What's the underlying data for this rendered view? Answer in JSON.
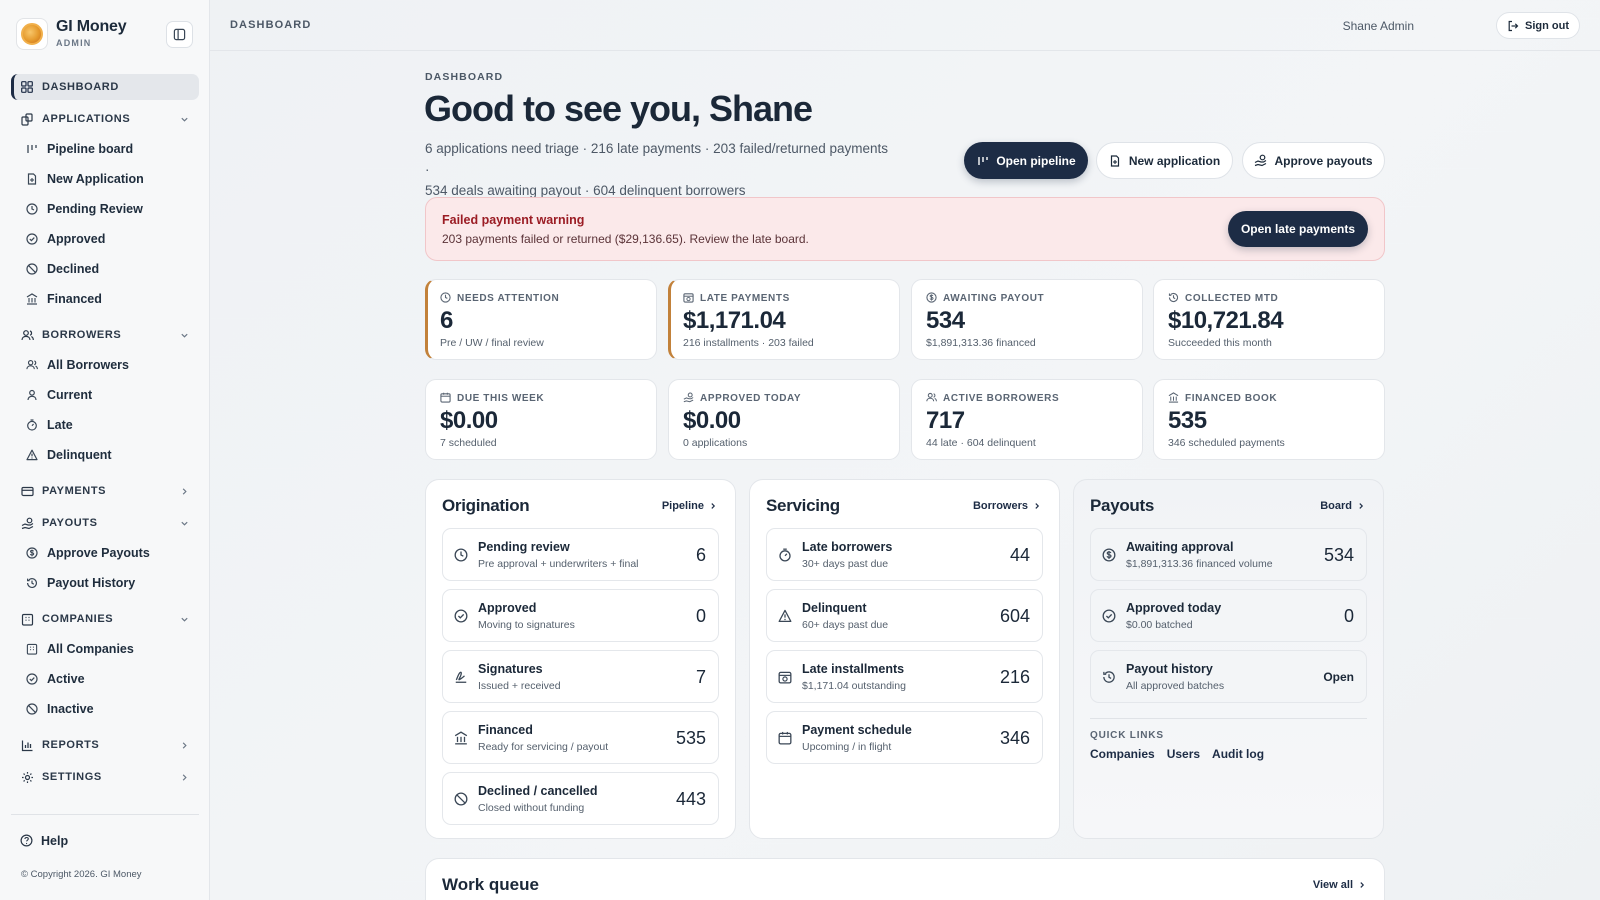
{
  "brand": {
    "name": "GI Money",
    "role": "ADMIN"
  },
  "nav": {
    "dashboard": "DASHBOARD",
    "applications": "APPLICATIONS",
    "app_items": [
      "Pipeline board",
      "New Application",
      "Pending Review",
      "Approved",
      "Declined",
      "Financed"
    ],
    "borrowers": "BORROWERS",
    "borrower_items": [
      "All Borrowers",
      "Current",
      "Late",
      "Delinquent"
    ],
    "payments": "PAYMENTS",
    "payouts": "PAYOUTS",
    "payout_items": [
      "Approve Payouts",
      "Payout History"
    ],
    "companies": "COMPANIES",
    "company_items": [
      "All Companies",
      "Active",
      "Inactive"
    ],
    "reports": "REPORTS",
    "settings": "SETTINGS",
    "help": "Help",
    "copyright": "© Copyright 2026. GI Money"
  },
  "topbar": {
    "title": "DASHBOARD",
    "user": "Shane Admin",
    "signout": "Sign out"
  },
  "header": {
    "eyebrow": "DASHBOARD",
    "greeting": "Good to see you, Shane",
    "summary_line1": "6 applications need triage · 216 late payments · 203 failed/returned payments ·",
    "summary_line2": "534 deals awaiting payout · 604 delinquent borrowers",
    "btn_pipeline": "Open pipeline",
    "btn_new_app": "New application",
    "btn_payouts": "Approve payouts"
  },
  "alert": {
    "title": "Failed payment warning",
    "body": "203 payments failed or returned ($29,136.65). Review the late board.",
    "button": "Open late payments"
  },
  "stats": [
    {
      "label": "NEEDS ATTENTION",
      "value": "6",
      "sub": "Pre / UW / final review"
    },
    {
      "label": "LATE PAYMENTS",
      "value": "$1,171.04",
      "sub": "216 installments · 203 failed"
    },
    {
      "label": "AWAITING PAYOUT",
      "value": "534",
      "sub": "$1,891,313.36 financed"
    },
    {
      "label": "COLLECTED MTD",
      "value": "$10,721.84",
      "sub": "Succeeded this month"
    },
    {
      "label": "DUE THIS WEEK",
      "value": "$0.00",
      "sub": "7 scheduled"
    },
    {
      "label": "APPROVED TODAY",
      "value": "$0.00",
      "sub": "0 applications"
    },
    {
      "label": "ACTIVE BORROWERS",
      "value": "717",
      "sub": "44 late · 604 delinquent"
    },
    {
      "label": "FINANCED BOOK",
      "value": "535",
      "sub": "346 scheduled payments"
    }
  ],
  "origination": {
    "title": "Origination",
    "link": "Pipeline",
    "rows": [
      {
        "title": "Pending review",
        "sub": "Pre approval + underwriters + final",
        "value": "6"
      },
      {
        "title": "Approved",
        "sub": "Moving to signatures",
        "value": "0"
      },
      {
        "title": "Signatures",
        "sub": "Issued + received",
        "value": "7"
      },
      {
        "title": "Financed",
        "sub": "Ready for servicing / payout",
        "value": "535"
      },
      {
        "title": "Declined / cancelled",
        "sub": "Closed without funding",
        "value": "443"
      }
    ]
  },
  "servicing": {
    "title": "Servicing",
    "link": "Borrowers",
    "rows": [
      {
        "title": "Late borrowers",
        "sub": "30+ days past due",
        "value": "44"
      },
      {
        "title": "Delinquent",
        "sub": "60+ days past due",
        "value": "604"
      },
      {
        "title": "Late installments",
        "sub": "$1,171.04 outstanding",
        "value": "216"
      },
      {
        "title": "Payment schedule",
        "sub": "Upcoming / in flight",
        "value": "346"
      }
    ]
  },
  "payouts": {
    "title": "Payouts",
    "link": "Board",
    "rows": [
      {
        "title": "Awaiting approval",
        "sub": "$1,891,313.36 financed volume",
        "value": "534"
      },
      {
        "title": "Approved today",
        "sub": "$0.00 batched",
        "value": "0"
      },
      {
        "title": "Payout history",
        "sub": "All approved batches",
        "value": "Open"
      }
    ],
    "quick_links_label": "QUICK LINKS",
    "quick_links": [
      "Companies",
      "Users",
      "Audit log"
    ]
  },
  "work_queue": {
    "title": "Work queue",
    "link": "View all"
  },
  "colors": {
    "primary": "#1d2c45",
    "alert_bg": "#fbe9ea",
    "alert_text": "#9b1c24",
    "warn_border": "#c2813a"
  }
}
